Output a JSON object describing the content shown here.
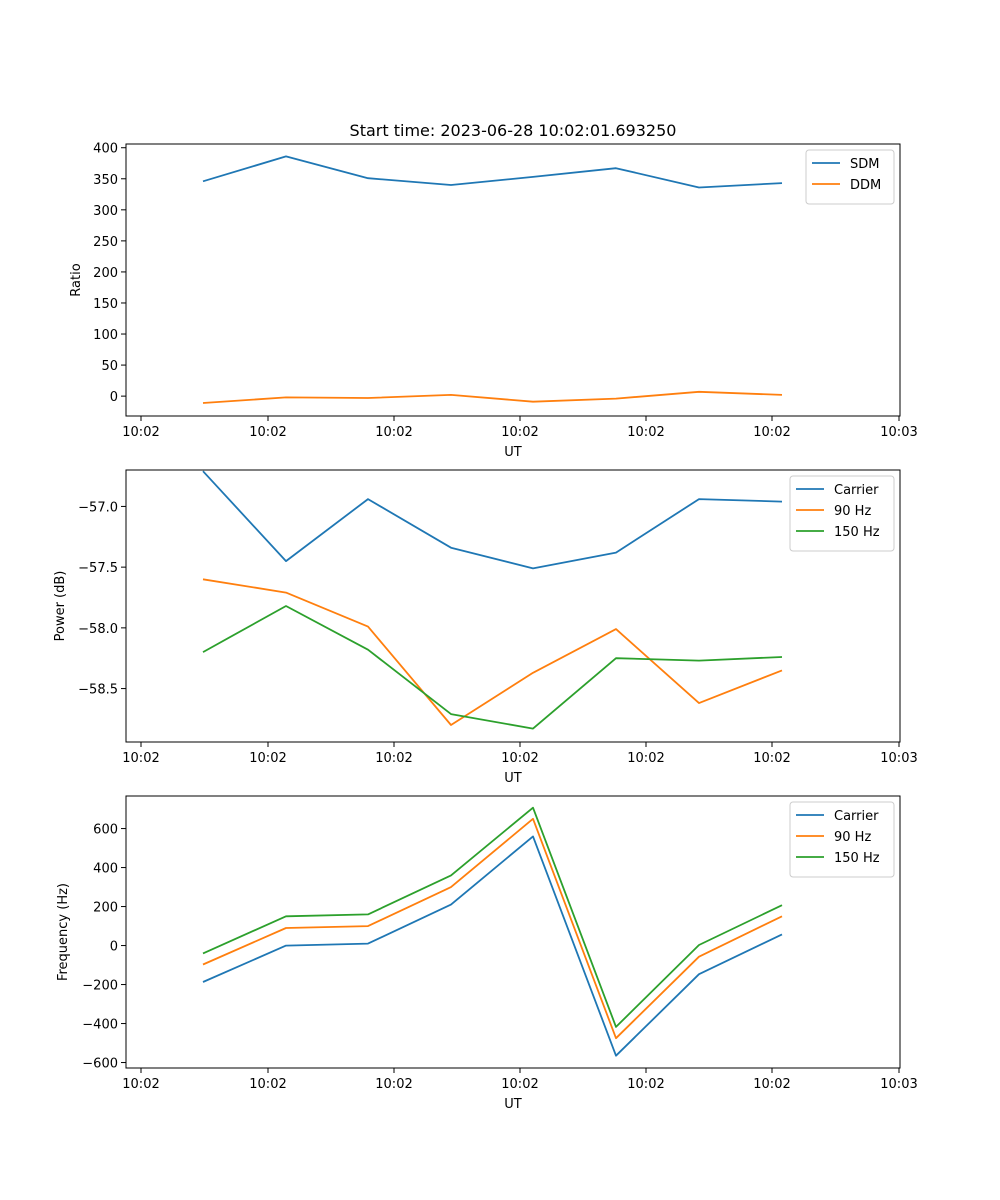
{
  "title": "Start time: 2023-06-28 10:02:01.693250",
  "colors": {
    "blue": "#1f77b4",
    "orange": "#ff7f0e",
    "green": "#2ca02c"
  },
  "chart_data": [
    {
      "type": "line",
      "title": "Start time: 2023-06-28 10:02:01.693250",
      "xlabel": "UT",
      "ylabel": "Ratio",
      "xticks": [
        "10:02",
        "10:02",
        "10:02",
        "10:02",
        "10:02",
        "10:02",
        "10:02",
        "10:03"
      ],
      "yticks": [
        "0",
        "50",
        "100",
        "150",
        "200",
        "250",
        "300",
        "350",
        "400"
      ],
      "ylim": [
        -32,
        406
      ],
      "legend": "top-right",
      "grid": false,
      "series": [
        {
          "name": "SDM",
          "color": "#1f77b4",
          "values": [
            346,
            386,
            351,
            340,
            353,
            367,
            336,
            343
          ]
        },
        {
          "name": "DDM",
          "color": "#ff7f0e",
          "values": [
            -11,
            -2,
            -3,
            2,
            -9,
            -4,
            7,
            2
          ]
        }
      ]
    },
    {
      "type": "line",
      "xlabel": "UT",
      "ylabel": "Power (dB)",
      "xticks": [
        "10:02",
        "10:02",
        "10:02",
        "10:02",
        "10:02",
        "10:02",
        "10:02",
        "10:03"
      ],
      "yticks": [
        "−58.5",
        "−58.0",
        "−57.5",
        "−57.0"
      ],
      "ylim": [
        -58.94,
        -56.7
      ],
      "legend": "top-right",
      "grid": false,
      "series": [
        {
          "name": "Carrier",
          "color": "#1f77b4",
          "values": [
            -56.71,
            -57.45,
            -56.94,
            -57.34,
            -57.51,
            -57.38,
            -56.94,
            -56.96
          ]
        },
        {
          "name": "90 Hz",
          "color": "#ff7f0e",
          "values": [
            -57.6,
            -57.71,
            -57.99,
            -58.8,
            -58.37,
            -58.01,
            -58.62,
            -58.35
          ]
        },
        {
          "name": "150 Hz",
          "color": "#2ca02c",
          "values": [
            -58.2,
            -57.82,
            -58.18,
            -58.71,
            -58.83,
            -58.25,
            -58.27,
            -58.24
          ]
        }
      ]
    },
    {
      "type": "line",
      "xlabel": "UT",
      "ylabel": "Frequency (Hz)",
      "xticks": [
        "10:02",
        "10:02",
        "10:02",
        "10:02",
        "10:02",
        "10:02",
        "10:02",
        "10:03"
      ],
      "yticks": [
        "−600",
        "−400",
        "−200",
        "0",
        "200",
        "400",
        "600"
      ],
      "ylim": [
        -628,
        767
      ],
      "legend": "top-right",
      "grid": false,
      "series": [
        {
          "name": "Carrier",
          "color": "#1f77b4",
          "values": [
            -187,
            0,
            10,
            210,
            560,
            -565,
            -147,
            57
          ]
        },
        {
          "name": "90 Hz",
          "color": "#ff7f0e",
          "values": [
            -97,
            90,
            100,
            300,
            650,
            -475,
            -57,
            150
          ]
        },
        {
          "name": "150 Hz",
          "color": "#2ca02c",
          "values": [
            -40,
            150,
            160,
            360,
            707,
            -417,
            3,
            207
          ]
        }
      ]
    }
  ]
}
